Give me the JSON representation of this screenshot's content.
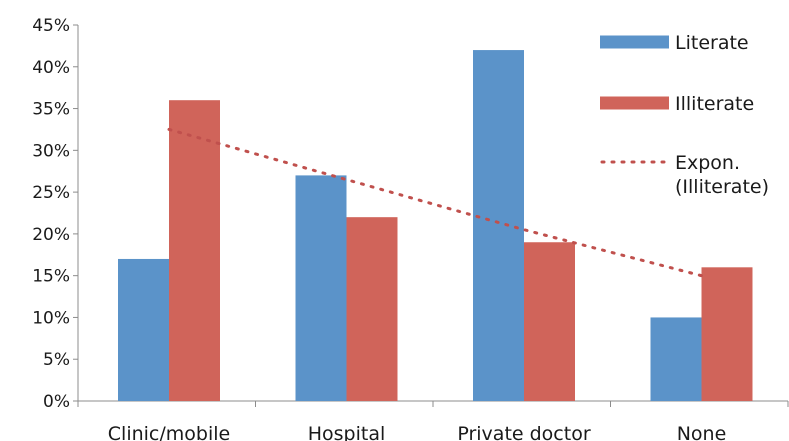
{
  "chart_data": {
    "type": "bar",
    "categories": [
      "Clinic/mobile",
      "Hospital",
      "Private doctor",
      "None"
    ],
    "series": [
      {
        "name": "Literate",
        "values": [
          0.17,
          0.27,
          0.42,
          0.1
        ],
        "color": "#5b93c9"
      },
      {
        "name": "Illiterate",
        "values": [
          0.36,
          0.22,
          0.19,
          0.16
        ],
        "color": "#d0645a"
      }
    ],
    "trendline": {
      "type": "exponential",
      "of_series": "Illiterate",
      "label": "Expon. (Illiterate)",
      "label_lines": [
        "Expon.",
        "(Illiterate)"
      ],
      "values": [
        0.325,
        0.265,
        0.205,
        0.15
      ],
      "color": "#c0504d",
      "style": "dotted"
    },
    "y_ticks": [
      "0%",
      "5%",
      "10%",
      "15%",
      "20%",
      "25%",
      "30%",
      "35%",
      "40%",
      "45%"
    ],
    "ylim": [
      0,
      0.45
    ],
    "grid": false,
    "legend_position": "right",
    "title": "",
    "xlabel": "",
    "ylabel": ""
  }
}
